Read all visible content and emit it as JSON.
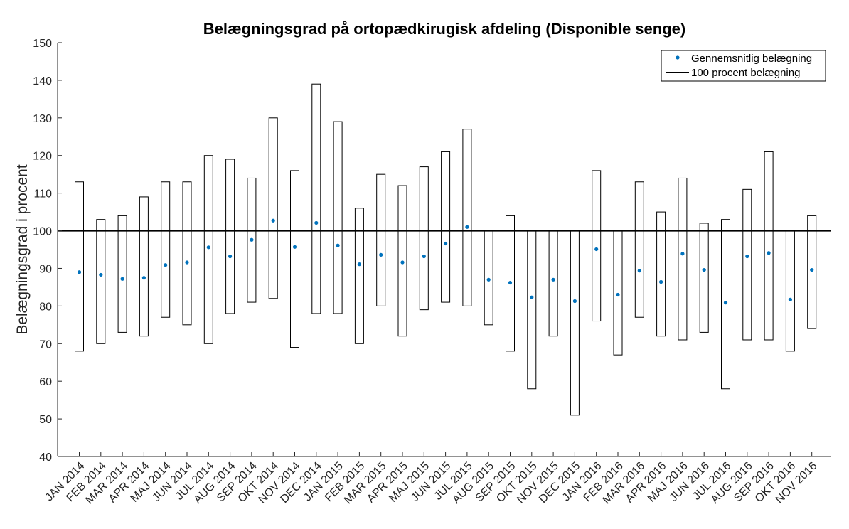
{
  "chart_data": {
    "type": "range-box-with-mean",
    "title": "Belægningsgrad på ortopædkirugisk afdeling (Disponible senge)",
    "ylabel": "Belægningsgrad i procent",
    "xlabel": "",
    "ylim": [
      40,
      150
    ],
    "yticks": [
      40,
      50,
      60,
      70,
      80,
      90,
      100,
      110,
      120,
      130,
      140,
      150
    ],
    "grid": false,
    "legend_position": "top-right",
    "reference_line": 100,
    "colors": {
      "mean_marker": "#0072bd",
      "box_stroke": "#000000",
      "reference_line": "#000000"
    },
    "legend": [
      {
        "label": "Gennemsnitlig belægning",
        "marker": "dot"
      },
      {
        "label": "100 procent belægning",
        "marker": "line"
      }
    ],
    "categories": [
      "JAN 2014",
      "FEB 2014",
      "MAR 2014",
      "APR 2014",
      "MAJ 2014",
      "JUN 2014",
      "JUL 2014",
      "AUG 2014",
      "SEP 2014",
      "OKT 2014",
      "NOV 2014",
      "DEC 2014",
      "JAN 2015",
      "FEB 2015",
      "MAR 2015",
      "APR 2015",
      "MAJ 2015",
      "JUN 2015",
      "JUL 2015",
      "AUG 2015",
      "SEP 2015",
      "OKT 2015",
      "NOV 2015",
      "DEC 2015",
      "JAN 2016",
      "FEB 2016",
      "MAR 2016",
      "APR 2016",
      "MAJ 2016",
      "JUN 2016",
      "JUL 2016",
      "AUG 2016",
      "SEP 2016",
      "OKT 2016",
      "NOV 2016"
    ],
    "max": [
      113,
      103,
      104,
      109,
      113,
      113,
      120,
      119,
      114,
      130,
      116,
      139,
      129,
      106,
      115,
      112,
      117,
      121,
      127,
      100,
      104,
      100,
      100,
      100,
      116,
      100,
      113,
      105,
      114,
      102,
      103,
      111,
      121,
      100,
      104
    ],
    "min": [
      68,
      70,
      73,
      72,
      77,
      75,
      70,
      78,
      81,
      82,
      69,
      78,
      78,
      70,
      80,
      72,
      79,
      81,
      80,
      75,
      68,
      58,
      72,
      51,
      76,
      67,
      77,
      72,
      71,
      73,
      58,
      71,
      71,
      68,
      74
    ],
    "mean": [
      89,
      88.3,
      87.2,
      87.5,
      90.9,
      91.6,
      95.6,
      93.2,
      97.6,
      102.7,
      95.7,
      102.1,
      96.1,
      91.1,
      93.6,
      91.6,
      93.2,
      96.6,
      101.0,
      87.0,
      86.2,
      82.3,
      87.0,
      81.3,
      95.1,
      83.0,
      89.4,
      86.4,
      93.9,
      89.6,
      80.9,
      93.2,
      94.1,
      81.7,
      89.6
    ]
  }
}
